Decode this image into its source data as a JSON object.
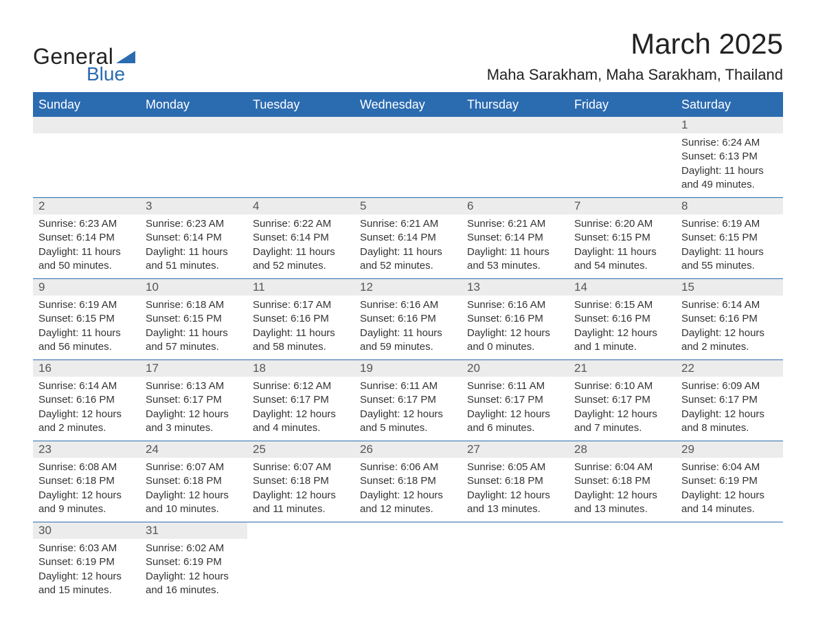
{
  "logo": {
    "word1": "General",
    "word2": "Blue",
    "flag_color": "#2b6bb0"
  },
  "title": "March 2025",
  "location": "Maha Sarakham, Maha Sarakham, Thailand",
  "layout": {
    "header_bg": "#2b6bb0",
    "header_text": "#ffffff",
    "daynum_bg": "#ececec",
    "border_color": "#2b6bb0",
    "body_font_size": 15,
    "header_font_size": 18,
    "title_font_size": 42,
    "location_font_size": 22
  },
  "weekdays": [
    "Sunday",
    "Monday",
    "Tuesday",
    "Wednesday",
    "Thursday",
    "Friday",
    "Saturday"
  ],
  "weeks": [
    [
      null,
      null,
      null,
      null,
      null,
      null,
      {
        "n": "1",
        "sr": "Sunrise: 6:24 AM",
        "ss": "Sunset: 6:13 PM",
        "d1": "Daylight: 11 hours",
        "d2": "and 49 minutes."
      }
    ],
    [
      {
        "n": "2",
        "sr": "Sunrise: 6:23 AM",
        "ss": "Sunset: 6:14 PM",
        "d1": "Daylight: 11 hours",
        "d2": "and 50 minutes."
      },
      {
        "n": "3",
        "sr": "Sunrise: 6:23 AM",
        "ss": "Sunset: 6:14 PM",
        "d1": "Daylight: 11 hours",
        "d2": "and 51 minutes."
      },
      {
        "n": "4",
        "sr": "Sunrise: 6:22 AM",
        "ss": "Sunset: 6:14 PM",
        "d1": "Daylight: 11 hours",
        "d2": "and 52 minutes."
      },
      {
        "n": "5",
        "sr": "Sunrise: 6:21 AM",
        "ss": "Sunset: 6:14 PM",
        "d1": "Daylight: 11 hours",
        "d2": "and 52 minutes."
      },
      {
        "n": "6",
        "sr": "Sunrise: 6:21 AM",
        "ss": "Sunset: 6:14 PM",
        "d1": "Daylight: 11 hours",
        "d2": "and 53 minutes."
      },
      {
        "n": "7",
        "sr": "Sunrise: 6:20 AM",
        "ss": "Sunset: 6:15 PM",
        "d1": "Daylight: 11 hours",
        "d2": "and 54 minutes."
      },
      {
        "n": "8",
        "sr": "Sunrise: 6:19 AM",
        "ss": "Sunset: 6:15 PM",
        "d1": "Daylight: 11 hours",
        "d2": "and 55 minutes."
      }
    ],
    [
      {
        "n": "9",
        "sr": "Sunrise: 6:19 AM",
        "ss": "Sunset: 6:15 PM",
        "d1": "Daylight: 11 hours",
        "d2": "and 56 minutes."
      },
      {
        "n": "10",
        "sr": "Sunrise: 6:18 AM",
        "ss": "Sunset: 6:15 PM",
        "d1": "Daylight: 11 hours",
        "d2": "and 57 minutes."
      },
      {
        "n": "11",
        "sr": "Sunrise: 6:17 AM",
        "ss": "Sunset: 6:16 PM",
        "d1": "Daylight: 11 hours",
        "d2": "and 58 minutes."
      },
      {
        "n": "12",
        "sr": "Sunrise: 6:16 AM",
        "ss": "Sunset: 6:16 PM",
        "d1": "Daylight: 11 hours",
        "d2": "and 59 minutes."
      },
      {
        "n": "13",
        "sr": "Sunrise: 6:16 AM",
        "ss": "Sunset: 6:16 PM",
        "d1": "Daylight: 12 hours",
        "d2": "and 0 minutes."
      },
      {
        "n": "14",
        "sr": "Sunrise: 6:15 AM",
        "ss": "Sunset: 6:16 PM",
        "d1": "Daylight: 12 hours",
        "d2": "and 1 minute."
      },
      {
        "n": "15",
        "sr": "Sunrise: 6:14 AM",
        "ss": "Sunset: 6:16 PM",
        "d1": "Daylight: 12 hours",
        "d2": "and 2 minutes."
      }
    ],
    [
      {
        "n": "16",
        "sr": "Sunrise: 6:14 AM",
        "ss": "Sunset: 6:16 PM",
        "d1": "Daylight: 12 hours",
        "d2": "and 2 minutes."
      },
      {
        "n": "17",
        "sr": "Sunrise: 6:13 AM",
        "ss": "Sunset: 6:17 PM",
        "d1": "Daylight: 12 hours",
        "d2": "and 3 minutes."
      },
      {
        "n": "18",
        "sr": "Sunrise: 6:12 AM",
        "ss": "Sunset: 6:17 PM",
        "d1": "Daylight: 12 hours",
        "d2": "and 4 minutes."
      },
      {
        "n": "19",
        "sr": "Sunrise: 6:11 AM",
        "ss": "Sunset: 6:17 PM",
        "d1": "Daylight: 12 hours",
        "d2": "and 5 minutes."
      },
      {
        "n": "20",
        "sr": "Sunrise: 6:11 AM",
        "ss": "Sunset: 6:17 PM",
        "d1": "Daylight: 12 hours",
        "d2": "and 6 minutes."
      },
      {
        "n": "21",
        "sr": "Sunrise: 6:10 AM",
        "ss": "Sunset: 6:17 PM",
        "d1": "Daylight: 12 hours",
        "d2": "and 7 minutes."
      },
      {
        "n": "22",
        "sr": "Sunrise: 6:09 AM",
        "ss": "Sunset: 6:17 PM",
        "d1": "Daylight: 12 hours",
        "d2": "and 8 minutes."
      }
    ],
    [
      {
        "n": "23",
        "sr": "Sunrise: 6:08 AM",
        "ss": "Sunset: 6:18 PM",
        "d1": "Daylight: 12 hours",
        "d2": "and 9 minutes."
      },
      {
        "n": "24",
        "sr": "Sunrise: 6:07 AM",
        "ss": "Sunset: 6:18 PM",
        "d1": "Daylight: 12 hours",
        "d2": "and 10 minutes."
      },
      {
        "n": "25",
        "sr": "Sunrise: 6:07 AM",
        "ss": "Sunset: 6:18 PM",
        "d1": "Daylight: 12 hours",
        "d2": "and 11 minutes."
      },
      {
        "n": "26",
        "sr": "Sunrise: 6:06 AM",
        "ss": "Sunset: 6:18 PM",
        "d1": "Daylight: 12 hours",
        "d2": "and 12 minutes."
      },
      {
        "n": "27",
        "sr": "Sunrise: 6:05 AM",
        "ss": "Sunset: 6:18 PM",
        "d1": "Daylight: 12 hours",
        "d2": "and 13 minutes."
      },
      {
        "n": "28",
        "sr": "Sunrise: 6:04 AM",
        "ss": "Sunset: 6:18 PM",
        "d1": "Daylight: 12 hours",
        "d2": "and 13 minutes."
      },
      {
        "n": "29",
        "sr": "Sunrise: 6:04 AM",
        "ss": "Sunset: 6:19 PM",
        "d1": "Daylight: 12 hours",
        "d2": "and 14 minutes."
      }
    ],
    [
      {
        "n": "30",
        "sr": "Sunrise: 6:03 AM",
        "ss": "Sunset: 6:19 PM",
        "d1": "Daylight: 12 hours",
        "d2": "and 15 minutes."
      },
      {
        "n": "31",
        "sr": "Sunrise: 6:02 AM",
        "ss": "Sunset: 6:19 PM",
        "d1": "Daylight: 12 hours",
        "d2": "and 16 minutes."
      },
      null,
      null,
      null,
      null,
      null
    ]
  ]
}
